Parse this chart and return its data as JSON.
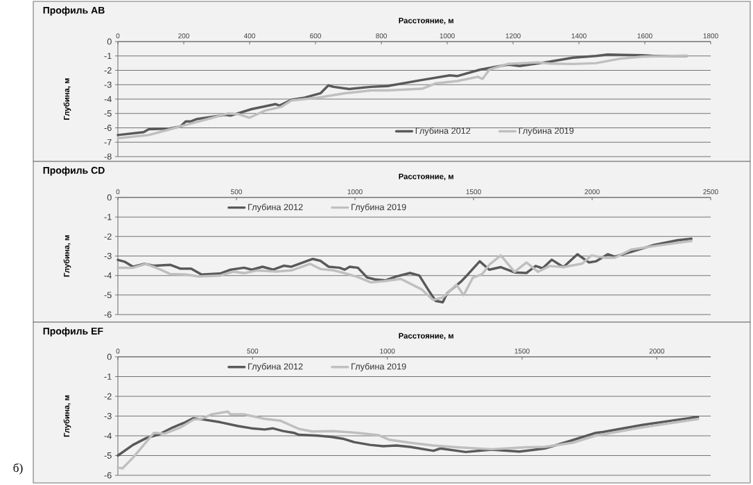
{
  "chart_data": [
    {
      "type": "line",
      "title": "Профиль AB",
      "xlabel": "Расстояние, м",
      "ylabel": "Глубина, м",
      "xlim": [
        0,
        1800
      ],
      "xticks": [
        0,
        200,
        400,
        600,
        800,
        1000,
        1200,
        1400,
        1600,
        1800
      ],
      "ylim": [
        -8,
        0
      ],
      "yticks": [
        -8,
        -7,
        -6,
        -5,
        -4,
        -3,
        -2,
        -1,
        0
      ],
      "grid": "y",
      "legend": "bottom",
      "series": [
        {
          "name": "Глубина 2012",
          "color": "#595959",
          "x": [
            0,
            78,
            94,
            158,
            190,
            206,
            222,
            238,
            327,
            342,
            406,
            479,
            491,
            527,
            567,
            615,
            639,
            655,
            703,
            768,
            818,
            924,
            1008,
            1030,
            1100,
            1185,
            1220,
            1311,
            1382,
            1452,
            1487,
            1593,
            1628,
            1727
          ],
          "values": [
            -6.5,
            -6.3,
            -6.1,
            -6.05,
            -5.9,
            -5.55,
            -5.55,
            -5.4,
            -5.1,
            -5.15,
            -4.7,
            -4.35,
            -4.45,
            -4.05,
            -3.9,
            -3.6,
            -3.05,
            -3.15,
            -3.3,
            -3.15,
            -3.1,
            -2.67,
            -2.35,
            -2.4,
            -1.95,
            -1.6,
            -1.7,
            -1.4,
            -1.12,
            -1.0,
            -0.9,
            -0.95,
            -1.0,
            -1.0
          ]
        },
        {
          "name": "Глубина 2019",
          "color": "#bfbfbf",
          "x": [
            0,
            94,
            126,
            198,
            287,
            334,
            367,
            399,
            447,
            495,
            527,
            607,
            687,
            768,
            818,
            924,
            966,
            1030,
            1093,
            1107,
            1128,
            1185,
            1276,
            1311,
            1382,
            1452,
            1523,
            1593,
            1727
          ],
          "values": [
            -6.72,
            -6.5,
            -6.3,
            -5.85,
            -5.3,
            -5.0,
            -5.05,
            -5.3,
            -4.8,
            -4.55,
            -4.1,
            -3.9,
            -3.6,
            -3.4,
            -3.4,
            -3.28,
            -2.9,
            -2.75,
            -2.45,
            -2.6,
            -1.95,
            -1.55,
            -1.45,
            -1.53,
            -1.56,
            -1.5,
            -1.2,
            -1.05,
            -0.98
          ]
        }
      ]
    },
    {
      "type": "line",
      "title": "Профиль CD",
      "xlabel": "Расстояние, м",
      "ylabel": "Глубина, м",
      "xlim": [
        0,
        2500
      ],
      "xticks": [
        0,
        500,
        1000,
        1500,
        2000,
        2500
      ],
      "ylim": [
        -6,
        0
      ],
      "yticks": [
        -6,
        -5,
        -4,
        -3,
        -2,
        -1,
        0
      ],
      "grid": "y",
      "legend": "top left",
      "series": [
        {
          "name": "Глубина 2012",
          "color": "#595959",
          "x": [
            0,
            30,
            64,
            114,
            153,
            220,
            264,
            309,
            353,
            431,
            476,
            532,
            565,
            610,
            655,
            699,
            732,
            822,
            855,
            889,
            934,
            956,
            978,
            1012,
            1051,
            1084,
            1129,
            1173,
            1232,
            1271,
            1311,
            1340,
            1370,
            1389,
            1448,
            1477,
            1526,
            1566,
            1615,
            1673,
            1723,
            1762,
            1791,
            1830,
            1879,
            1938,
            1987,
            2017,
            2066,
            2095,
            2164,
            2262,
            2360,
            2419
          ],
          "values": [
            -3.2,
            -3.3,
            -3.55,
            -3.4,
            -3.5,
            -3.45,
            -3.65,
            -3.65,
            -3.95,
            -3.9,
            -3.7,
            -3.6,
            -3.7,
            -3.55,
            -3.7,
            -3.5,
            -3.55,
            -3.15,
            -3.25,
            -3.55,
            -3.6,
            -3.7,
            -3.55,
            -3.6,
            -4.1,
            -4.2,
            -4.25,
            -4.05,
            -3.87,
            -4.0,
            -4.77,
            -5.3,
            -5.37,
            -4.9,
            -4.3,
            -3.93,
            -3.27,
            -3.7,
            -3.57,
            -3.84,
            -3.87,
            -3.51,
            -3.63,
            -3.19,
            -3.57,
            -2.91,
            -3.33,
            -3.27,
            -2.91,
            -3.03,
            -2.79,
            -2.43,
            -2.19,
            -2.11
          ]
        },
        {
          "name": "Глубина 2019",
          "color": "#bfbfbf",
          "x": [
            0,
            64,
            119,
            175,
            220,
            287,
            342,
            431,
            487,
            532,
            588,
            666,
            732,
            810,
            855,
            911,
            956,
            1012,
            1067,
            1123,
            1193,
            1281,
            1330,
            1370,
            1428,
            1458,
            1497,
            1536,
            1566,
            1615,
            1673,
            1723,
            1772,
            1821,
            1879,
            1958,
            1997,
            2056,
            2095,
            2164,
            2262,
            2419
          ],
          "values": [
            -3.6,
            -3.6,
            -3.4,
            -3.67,
            -3.92,
            -3.95,
            -4.05,
            -4.0,
            -3.8,
            -3.88,
            -3.74,
            -3.8,
            -3.74,
            -3.4,
            -3.67,
            -3.74,
            -3.88,
            -4.08,
            -4.35,
            -4.29,
            -4.17,
            -4.71,
            -5.25,
            -5.13,
            -4.47,
            -5.01,
            -4.11,
            -3.93,
            -3.45,
            -2.97,
            -3.81,
            -3.33,
            -3.81,
            -3.51,
            -3.57,
            -3.39,
            -2.97,
            -3.09,
            -3.09,
            -2.67,
            -2.49,
            -2.23
          ]
        }
      ]
    },
    {
      "type": "line",
      "title": "Профиль EF",
      "xlabel": "Расстояние, м",
      "ylabel": "Глубина, м",
      "xlim": [
        0,
        2200
      ],
      "xticks": [
        0,
        500,
        1000,
        1500,
        2000
      ],
      "ylim": [
        -6,
        0
      ],
      "yticks": [
        -6,
        -5,
        -4,
        -3,
        -2,
        -1,
        0
      ],
      "grid": "y",
      "legend": "top left",
      "annotations": [
        "б)"
      ],
      "series": [
        {
          "name": "Глубина 2012",
          "color": "#595959",
          "x": [
            0,
            56,
            105,
            154,
            203,
            251,
            280,
            320,
            379,
            447,
            496,
            545,
            574,
            613,
            653,
            672,
            741,
            790,
            839,
            877,
            936,
            985,
            1034,
            1084,
            1171,
            1197,
            1291,
            1386,
            1490,
            1584,
            1671,
            1774,
            1800,
            1947,
            2153
          ],
          "values": [
            -5.0,
            -4.46,
            -4.12,
            -3.92,
            -3.58,
            -3.31,
            -3.11,
            -3.18,
            -3.31,
            -3.51,
            -3.62,
            -3.68,
            -3.62,
            -3.76,
            -3.85,
            -3.95,
            -3.99,
            -4.05,
            -4.16,
            -4.32,
            -4.46,
            -4.53,
            -4.49,
            -4.56,
            -4.76,
            -4.64,
            -4.82,
            -4.7,
            -4.8,
            -4.64,
            -4.29,
            -3.85,
            -3.81,
            -3.45,
            -3.04
          ]
        },
        {
          "name": "Глубина 2019",
          "color": "#bfbfbf",
          "x": [
            0,
            17,
            56,
            134,
            173,
            232,
            281,
            310,
            349,
            408,
            418,
            467,
            545,
            604,
            672,
            721,
            800,
            888,
            966,
            1005,
            1084,
            1171,
            1257,
            1386,
            1516,
            1584,
            1688,
            1774,
            1947,
            2153
          ],
          "values": [
            -5.61,
            -5.65,
            -5.11,
            -3.85,
            -3.89,
            -3.58,
            -3.18,
            -3.14,
            -2.91,
            -2.77,
            -2.91,
            -2.91,
            -3.14,
            -3.24,
            -3.65,
            -3.78,
            -3.76,
            -3.85,
            -3.96,
            -4.19,
            -4.35,
            -4.49,
            -4.58,
            -4.68,
            -4.58,
            -4.56,
            -4.35,
            -3.99,
            -3.57,
            -3.15
          ]
        }
      ]
    }
  ]
}
